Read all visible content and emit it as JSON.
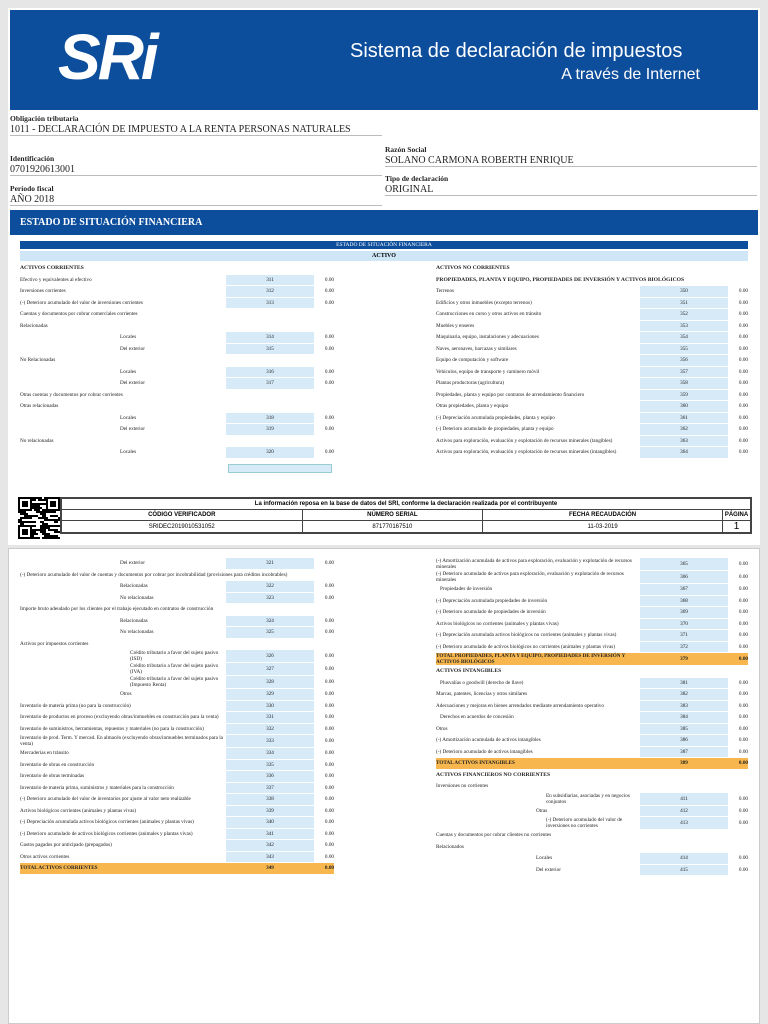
{
  "header": {
    "logo": "SRi",
    "title": "Sistema de declaración de impuestos",
    "subtitle": "A través de Internet"
  },
  "info": {
    "obligacion_label": "Obligación tributaria",
    "obligacion": "1011 - DECLARACIÓN DE IMPUESTO A LA RENTA PERSONAS NATURALES",
    "identificacion_label": "Identificación",
    "identificacion": "0701920613001",
    "periodo_label": "Período fiscal",
    "periodo": "AÑO 2018",
    "razon_label": "Razón Social",
    "razon": "SOLANO CARMONA ROBERTH ENRIQUE",
    "tipo_label": "Tipo de declaración",
    "tipo": "ORIGINAL"
  },
  "section": "ESTADO DE SITUACIÓN FINANCIERA",
  "table": {
    "title": "ESTADO DE SITUACIÓN FINANCIERA",
    "subtitle": "ACTIVO"
  },
  "page1": {
    "left": [
      {
        "label": "ACTIVOS CORRIENTES",
        "kind": "head"
      },
      {
        "label": "Efectivo y equivalentes al efectivo",
        "code": "311",
        "value": "0.00"
      },
      {
        "label": "Inversiones corrientes",
        "code": "312",
        "value": "0.00"
      },
      {
        "label": "(-) Deterioro acumulado del valor de inversiones corrientes",
        "code": "313",
        "value": "0.00"
      },
      {
        "label": "Cuentas y documentos por cobrar comerciales corrientes"
      },
      {
        "label": "Relacionadas"
      },
      {
        "label": "Locales",
        "code": "314",
        "value": "0.00"
      },
      {
        "label": "Del exterior",
        "code": "315",
        "value": "0.00"
      },
      {
        "label": "No Relacionadas"
      },
      {
        "label": "Locales",
        "code": "316",
        "value": "0.00"
      },
      {
        "label": "Del exterior",
        "code": "317",
        "value": "0.00"
      },
      {
        "label": "Otras cuentas y documentos por cobrar corrientes"
      },
      {
        "label": "Otras relacionadas"
      },
      {
        "label": "Locales",
        "code": "318",
        "value": "0.00"
      },
      {
        "label": "Del exterior",
        "code": "319",
        "value": "0.00"
      },
      {
        "label": "No relacionadas"
      },
      {
        "label": "Locales",
        "code": "320",
        "value": "0.00"
      }
    ],
    "right": [
      {
        "label": "ACTIVOS NO CORRIENTES",
        "kind": "head"
      },
      {
        "label": "PROPIEDADES, PLANTA Y EQUIPO, PROPIEDADES DE INVERSIÓN Y ACTIVOS BIOLÓGICOS",
        "kind": "head"
      },
      {
        "label": "Terrenos",
        "code": "350",
        "value": "0.00"
      },
      {
        "label": "Edificios y otros inmuebles (excepto terrenos)",
        "code": "351",
        "value": "0.00"
      },
      {
        "label": "Construcciones en curso y otros activos en tránsito",
        "code": "352",
        "value": "0.00"
      },
      {
        "label": "Muebles y enseres",
        "code": "353",
        "value": "0.00"
      },
      {
        "label": "Maquinaria, equipo, instalaciones y adecuaciones",
        "code": "354",
        "value": "0.00"
      },
      {
        "label": "Naves, aeronaves, barcazas y similares",
        "code": "355",
        "value": "0.00"
      },
      {
        "label": "Equipo de computación y software",
        "code": "356",
        "value": "0.00"
      },
      {
        "label": "Vehículos, equipo de transporte y caminero móvil",
        "code": "357",
        "value": "0.00"
      },
      {
        "label": "Plantas productoras (agricultura)",
        "code": "358",
        "value": "0.00"
      },
      {
        "label": "Propiedades, planta y equipo por contratos de arrendamiento financiero",
        "code": "359",
        "value": "0.00"
      },
      {
        "label": "Otras propiedades, planta y equipo",
        "code": "360",
        "value": "0.00"
      },
      {
        "label": "(-) Depreciación acumulada propiedades, planta y equipo",
        "code": "361",
        "value": "0.00"
      },
      {
        "label": "(-) Deterioro acumulado de propiedades, planta y equipo",
        "code": "362",
        "value": "0.00"
      },
      {
        "label": "Activos para exploración, evaluación y explotación de recursos minerales (tangibles)",
        "code": "363",
        "value": "0.00"
      },
      {
        "label": "Activos para exploración, evaluación y explotación de recursos minerales (intangibles)",
        "code": "364",
        "value": "0.00"
      }
    ]
  },
  "footer": {
    "note": "La información reposa en la base de datos del SRI, conforme la declaración realizada por el contribuyente",
    "headers": [
      "CÓDIGO VERIFICADOR",
      "NÚMERO SERIAL",
      "FECHA RECAUDACIÓN",
      "PÁGINA"
    ],
    "values": [
      "SRIDEC2019010531052",
      "871770167510",
      "11-03-2019",
      "1"
    ]
  },
  "page2": {
    "left": [
      {
        "label": "Del exterior",
        "code": "321",
        "value": "0.00"
      },
      {
        "label": "(-) Deterioro acumulado del valor de cuentas y documentos por cobrar por incobrabilidad (provisiones para créditos incobrables)"
      },
      {
        "label": "Relacionadas",
        "code": "322",
        "value": "0.00"
      },
      {
        "label": "No relacionadas",
        "code": "323",
        "value": "0.00"
      },
      {
        "label": "Importe bruto adeudado por los clientes por el trabajo ejecutado en contratos de construcción"
      },
      {
        "label": "Relacionadas",
        "code": "324",
        "value": "0.00"
      },
      {
        "label": "No relacionadas",
        "code": "325",
        "value": "0.00"
      },
      {
        "label": "Activos por impuestos corrientes"
      },
      {
        "label": "Crédito tributario a favor del sujeto pasivo (ISD)",
        "code": "326",
        "value": "0.00"
      },
      {
        "label": "Crédito tributario a favor del sujeto pasivo (IVA)",
        "code": "327",
        "value": "0.00"
      },
      {
        "label": "Crédito tributario a favor del sujeto pasivo (Impuesto Renta)",
        "code": "328",
        "value": "0.00"
      },
      {
        "label": "Otros",
        "code": "329",
        "value": "0.00"
      },
      {
        "label": "Inventario de materia prima (no para la construcción)",
        "code": "330",
        "value": "0.00"
      },
      {
        "label": "Inventario de productos en proceso (excluyendo obras/inmuebles en construcción para la venta)",
        "code": "331",
        "value": "0.00"
      },
      {
        "label": "Inventario de suministros, herramientas, repuestos y materiales (no para la construcción)",
        "code": "332",
        "value": "0.00"
      },
      {
        "label": "Inventario de prod. Term. Y mercad. En almacén (excluyendo obras/inmuebles terminados para la venta)",
        "code": "333",
        "value": "0.00"
      },
      {
        "label": "Mercaderías en tránsito",
        "code": "334",
        "value": "0.00"
      },
      {
        "label": "Inventario de obras en construcción",
        "code": "335",
        "value": "0.00"
      },
      {
        "label": "Inventario de obras terminadas",
        "code": "336",
        "value": "0.00"
      },
      {
        "label": "Inventario de materia prima, suministros y materiales para la construcción",
        "code": "337",
        "value": "0.00"
      },
      {
        "label": "(-) Deterioro acumulado del valor de inventarios por ajuste al valor neto realizable",
        "code": "338",
        "value": "0.00"
      },
      {
        "label": "Activos biológicos corrientes (animales y plantas vivas)",
        "code": "339",
        "value": "0.00"
      },
      {
        "label": "(-) Depreciación acumulada activos biológicos corrientes (animales y plantas vivas)",
        "code": "340",
        "value": "0.00"
      },
      {
        "label": "(-) Deterioro acumulado de activos biológicos corrientes (animales y plantas vivas)",
        "code": "341",
        "value": "0.00"
      },
      {
        "label": "Gastos pagados por anticipado (prepagados)",
        "code": "342",
        "value": "0.00"
      },
      {
        "label": "Otros activos corrientes",
        "code": "343",
        "value": "0.00"
      },
      {
        "label": "TOTAL ACTIVOS CORRIENTES",
        "code": "349",
        "value": "0.00",
        "kind": "total"
      }
    ],
    "right": [
      {
        "label": "(-) Amortización acumulada de activos para exploración, evaluación y explotación de recursos minerales",
        "code": "365",
        "value": "0.00"
      },
      {
        "label": "(-) Deterioro acumulado de activos para exploración, evaluación y explotación de recursos minerales",
        "code": "366",
        "value": "0.00"
      },
      {
        "label": "Propiedades de inversión",
        "code": "367",
        "value": "0.00"
      },
      {
        "label": "(-) Depreciación acumulada propiedades de inversión",
        "code": "368",
        "value": "0.00"
      },
      {
        "label": "(-) Deterioro acumulado de propiedades de inversión",
        "code": "369",
        "value": "0.00"
      },
      {
        "label": "Activos biológicos no corrientes (animales y plantas vivas)",
        "code": "370",
        "value": "0.00"
      },
      {
        "label": "(-) Depreciación acumulada activos biológicos no corrientes (animales y plantas vivas)",
        "code": "371",
        "value": "0.00"
      },
      {
        "label": "(-) Deterioro acumulado de activos biológicos no corrientes (animales y plantas vivas)",
        "code": "372",
        "value": "0.00"
      },
      {
        "label": "TOTAL PROPIEDADES, PLANTA Y EQUIPO, PROPIEDADES DE INVERSIÓN Y ACTIVOS BIOLÓGICOS",
        "code": "379",
        "value": "0.00",
        "kind": "total"
      },
      {
        "label": "ACTIVOS INTANGIBLES",
        "kind": "head"
      },
      {
        "label": "Plusvalías o goodwill (derecho de llave)",
        "code": "381",
        "value": "0.00"
      },
      {
        "label": "Marcas, patentes, licencias y otros similares",
        "code": "382",
        "value": "0.00"
      },
      {
        "label": "Adecuaciones y mejoras en bienes arrendados mediante arrendamiento operativo",
        "code": "383",
        "value": "0.00"
      },
      {
        "label": "Derechos en acuerdos de concesión",
        "code": "384",
        "value": "0.00"
      },
      {
        "label": "Otros",
        "code": "385",
        "value": "0.00"
      },
      {
        "label": "(-) Amortización acumulada de activos intangibles",
        "code": "386",
        "value": "0.00"
      },
      {
        "label": "(-) Deterioro acumulado de activos intangibles",
        "code": "387",
        "value": "0.00"
      },
      {
        "label": "TOTAL ACTIVOS INTANGIBLES",
        "code": "389",
        "value": "0.00",
        "kind": "total"
      },
      {
        "label": "ACTIVOS FINANCIEROS NO CORRIENTES",
        "kind": "head"
      },
      {
        "label": "Inversiones no corrientes"
      },
      {
        "label": "En subsidiarias, asociadas y en negocios conjuntos",
        "code": "411",
        "value": "0.00"
      },
      {
        "label": "Otras",
        "code": "412",
        "value": "0.00"
      },
      {
        "label": "(-) Deterioro acumulado del valor de inversiones no corrientes",
        "code": "413",
        "value": "0.00"
      },
      {
        "label": "Cuentas y documentos por cobrar clientes no corrientes"
      },
      {
        "label": "Relacionados"
      },
      {
        "label": "Locales",
        "code": "414",
        "value": "0.00"
      },
      {
        "label": "Del exterior",
        "code": "415",
        "value": "0.00"
      }
    ]
  }
}
